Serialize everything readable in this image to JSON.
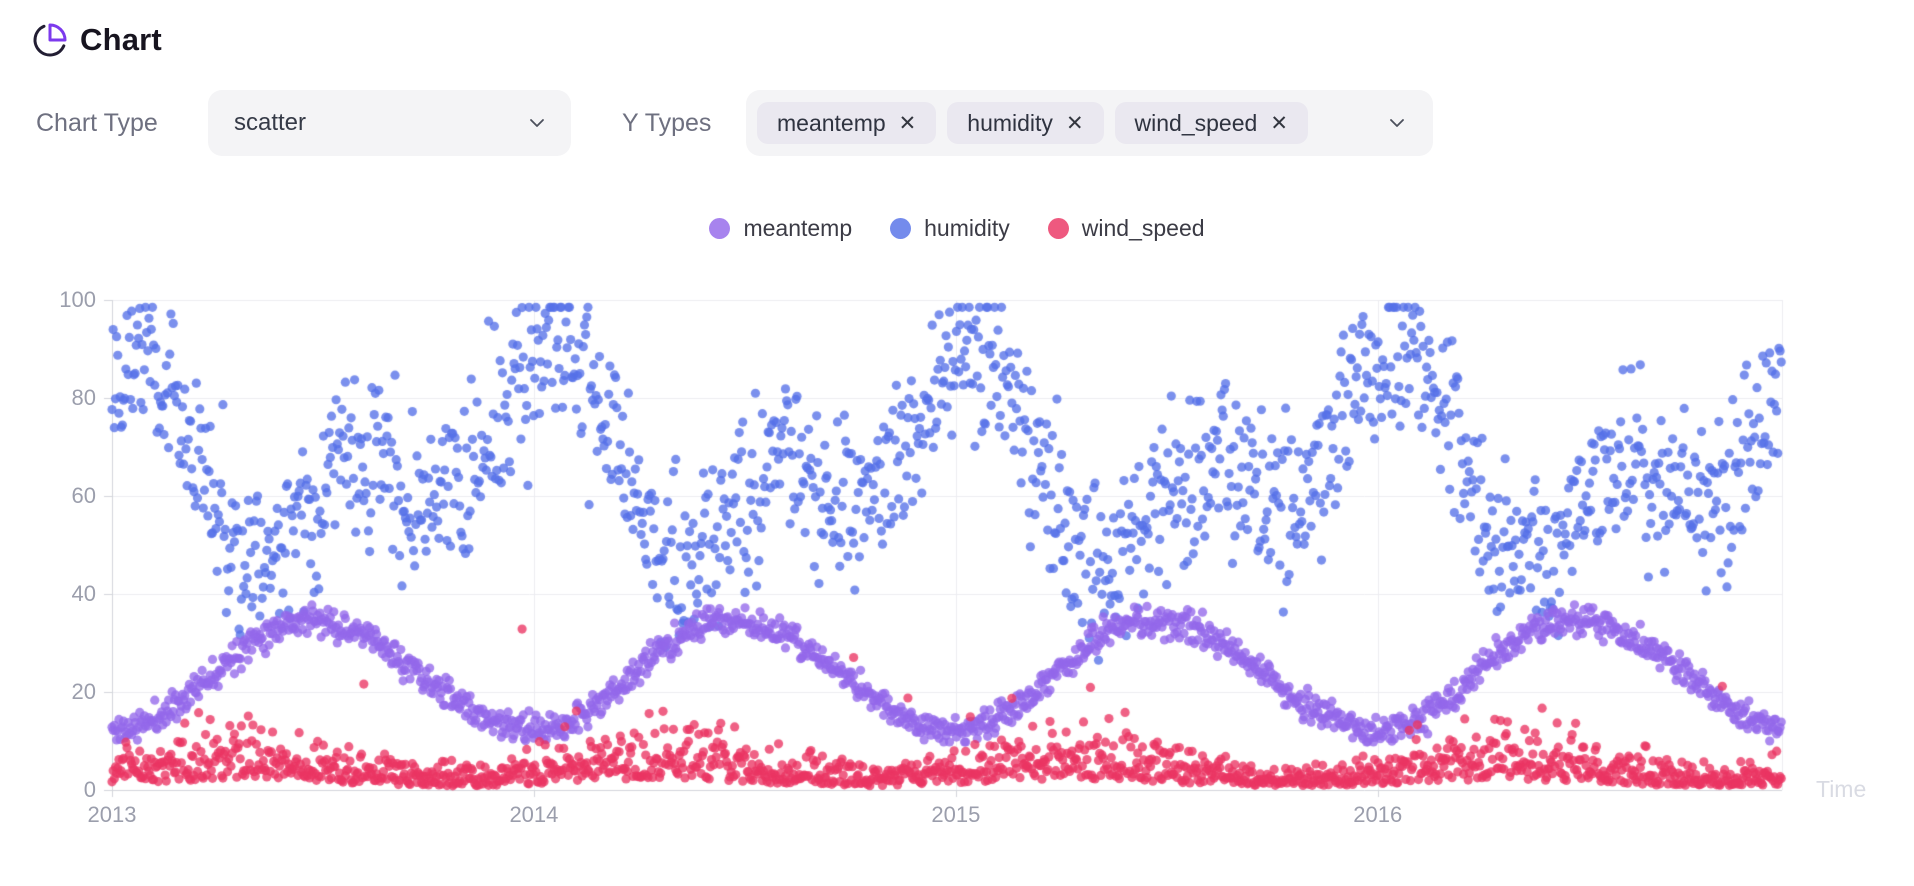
{
  "header": {
    "title": "Chart"
  },
  "controls": {
    "chart_type_label": "Chart Type",
    "chart_type_value": "scatter",
    "y_types_label": "Y Types",
    "y_type_tags": [
      {
        "label": "meantemp",
        "remove_glyph": "✕"
      },
      {
        "label": "humidity",
        "remove_glyph": "✕"
      },
      {
        "label": "wind_speed",
        "remove_glyph": "✕"
      }
    ]
  },
  "colors": {
    "accent_purple": "#7c3aed",
    "icon_dark": "#221e33",
    "grid_line": "#ececf1",
    "axis_line": "#d3d5db",
    "tick_text": "#9b9eac",
    "axis_name_text": "#d9dbe3",
    "control_bg": "#f4f4f6",
    "pill_bg": "#eae8f0"
  },
  "chart_data": {
    "type": "scatter",
    "title": "",
    "xlabel": "Time",
    "ylabel": "",
    "x_axis": {
      "label": "Time",
      "kind": "time",
      "tick_labels": [
        "2013",
        "2014",
        "2015",
        "2016"
      ],
      "range_years": [
        2013.0,
        2016.958
      ]
    },
    "y_axis": {
      "tick_labels": [
        0,
        20,
        40,
        60,
        80,
        100
      ],
      "range": [
        0,
        100
      ]
    },
    "grid": true,
    "legend_position": "top-center",
    "sampling": "daily points, Jan 2013 through mid-Dec 2016",
    "points_per_series": 1446,
    "point_radius": 4.6,
    "point_opacity": 0.78,
    "draw_order": [
      "humidity",
      "meantemp",
      "wind_speed"
    ],
    "series": [
      {
        "name": "meantemp",
        "color": "#9468ea",
        "summary": "seasonal arch each year: ~12 in January rising to ~35 in June, back to ~12 by December",
        "model": {
          "type": "seasonal_arch",
          "seed": 11,
          "min": 12.2,
          "max": 34.6,
          "trough_frac": 0.005,
          "rise_len": 0.455,
          "noise_sd": 1.5,
          "clamp": [
            9.8,
            38.5
          ]
        }
      },
      {
        "name": "humidity",
        "color": "#5671e8",
        "summary": "high ~85-98 in winter, dips to ~35-55 in April-May, recovers to ~55-85 during monsoon; spread 24-98",
        "model": {
          "type": "double_harmonic",
          "seed": 22,
          "mean": 66,
          "a1": 14,
          "p1": 0.02,
          "a2": 12,
          "p2": 0.565,
          "noise_sd": 8.5,
          "clamp": [
            24,
            98.5
          ]
        }
      },
      {
        "name": "wind_speed",
        "color": "#ea3563",
        "summary": "dense band 0-13 all year, sparse points 13-20, rare spikes up to ~40",
        "model": {
          "type": "skewed_positive",
          "seed": 33,
          "base_mean": 5.2,
          "base_amp": 2.3,
          "base_phase": 0.05,
          "k0": 0.28,
          "k1": 0.72,
          "spike_prob": 0.006,
          "spike_add": 10,
          "spike_rand": 22,
          "clamp": [
            0.3,
            42
          ]
        }
      }
    ]
  }
}
